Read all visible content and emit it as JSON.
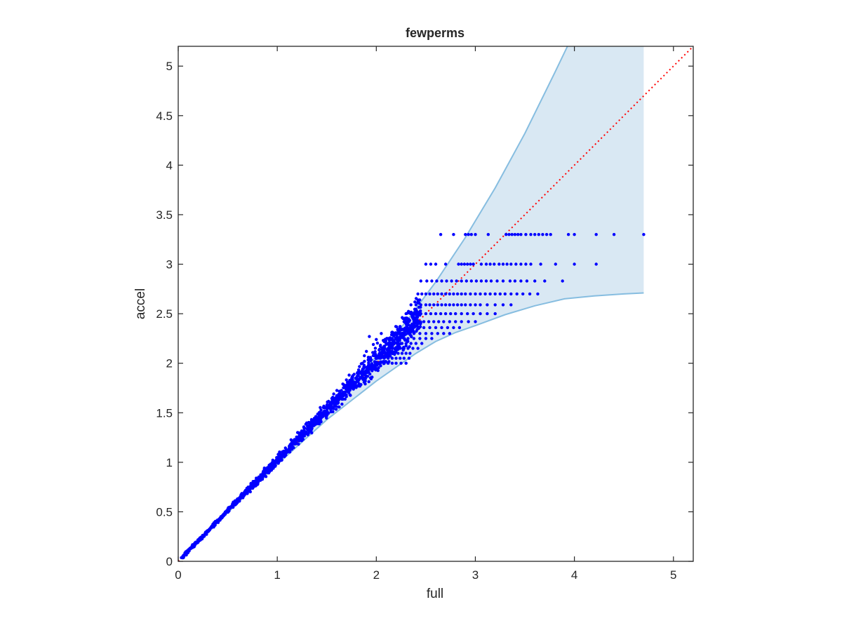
{
  "chart_data": {
    "type": "scatter",
    "title": "fewperms",
    "xlabel": "full",
    "ylabel": "accel",
    "xlim": [
      0,
      5.2
    ],
    "ylim": [
      0,
      5.2
    ],
    "xticks": [
      0,
      1,
      2,
      3,
      4,
      5
    ],
    "yticks": [
      0,
      0.5,
      1,
      1.5,
      2,
      2.5,
      3,
      3.5,
      4,
      4.5,
      5
    ],
    "x_tick_labels": [
      "0",
      "1",
      "2",
      "3",
      "4",
      "5"
    ],
    "y_tick_labels": [
      "0",
      "0.5",
      "1",
      "1.5",
      "2",
      "2.5",
      "3",
      "3.5",
      "4",
      "4.5",
      "5"
    ],
    "grid": false,
    "box": true,
    "colors": {
      "points": "#0000ff",
      "band_fill": "#d9e8f3",
      "band_edge": "#86bde0",
      "reference_line": "#ff0000",
      "axes": "#262626"
    },
    "reference_line": {
      "style": "dotted",
      "from": [
        0,
        0
      ],
      "to": [
        5.2,
        5.2
      ]
    },
    "band": {
      "upper": [
        [
          0.03,
          0.03
        ],
        [
          0.5,
          0.49
        ],
        [
          1.0,
          0.99
        ],
        [
          1.5,
          1.52
        ],
        [
          2.0,
          2.07
        ],
        [
          2.3,
          2.42
        ],
        [
          2.6,
          2.82
        ],
        [
          2.9,
          3.27
        ],
        [
          3.2,
          3.77
        ],
        [
          3.5,
          4.32
        ],
        [
          3.8,
          4.93
        ],
        [
          3.93,
          5.2
        ],
        [
          4.7,
          5.2
        ]
      ],
      "lower": [
        [
          4.7,
          2.71
        ],
        [
          4.5,
          2.7
        ],
        [
          4.2,
          2.68
        ],
        [
          3.9,
          2.65
        ],
        [
          3.6,
          2.58
        ],
        [
          3.3,
          2.49
        ],
        [
          3.0,
          2.38
        ],
        [
          2.8,
          2.31
        ],
        [
          2.6,
          2.22
        ],
        [
          2.4,
          2.1
        ],
        [
          2.2,
          1.96
        ],
        [
          2.0,
          1.82
        ],
        [
          1.5,
          1.43
        ],
        [
          1.0,
          0.98
        ],
        [
          0.5,
          0.5
        ],
        [
          0.03,
          0.03
        ]
      ]
    },
    "cloud": {
      "points": 1400,
      "x_range": [
        0.03,
        2.45
      ],
      "description": "dense scatter hugging the diagonal, widening with x"
    },
    "points": [
      [
        2.5,
        3.0
      ],
      [
        2.65,
        3.3
      ],
      [
        2.78,
        3.3
      ],
      [
        2.9,
        3.3
      ],
      [
        2.93,
        3.3
      ],
      [
        2.96,
        3.3
      ],
      [
        3.0,
        3.3
      ],
      [
        3.13,
        3.3
      ],
      [
        3.31,
        3.3
      ],
      [
        3.34,
        3.3
      ],
      [
        3.37,
        3.3
      ],
      [
        3.4,
        3.3
      ],
      [
        3.43,
        3.3
      ],
      [
        3.46,
        3.3
      ],
      [
        3.51,
        3.3
      ],
      [
        3.56,
        3.3
      ],
      [
        3.6,
        3.3
      ],
      [
        3.64,
        3.3
      ],
      [
        3.68,
        3.3
      ],
      [
        3.72,
        3.3
      ],
      [
        3.76,
        3.3
      ],
      [
        3.94,
        3.3
      ],
      [
        4.0,
        3.3
      ],
      [
        4.22,
        3.3
      ],
      [
        4.4,
        3.3
      ],
      [
        4.7,
        3.3
      ],
      [
        2.55,
        3.0
      ],
      [
        2.6,
        3.0
      ],
      [
        2.7,
        3.0
      ],
      [
        2.83,
        3.0
      ],
      [
        2.86,
        3.0
      ],
      [
        2.89,
        3.0
      ],
      [
        2.92,
        3.0
      ],
      [
        2.95,
        3.0
      ],
      [
        2.98,
        3.0
      ],
      [
        3.06,
        3.0
      ],
      [
        3.11,
        3.0
      ],
      [
        3.15,
        3.0
      ],
      [
        3.19,
        3.0
      ],
      [
        3.24,
        3.0
      ],
      [
        3.28,
        3.0
      ],
      [
        3.32,
        3.0
      ],
      [
        3.36,
        3.0
      ],
      [
        3.41,
        3.0
      ],
      [
        3.46,
        3.0
      ],
      [
        3.51,
        3.0
      ],
      [
        3.56,
        3.0
      ],
      [
        3.66,
        3.0
      ],
      [
        3.81,
        3.0
      ],
      [
        4.0,
        3.0
      ],
      [
        4.22,
        3.0
      ],
      [
        2.45,
        2.83
      ],
      [
        2.51,
        2.83
      ],
      [
        2.56,
        2.83
      ],
      [
        2.61,
        2.83
      ],
      [
        2.66,
        2.83
      ],
      [
        2.71,
        2.83
      ],
      [
        2.76,
        2.83
      ],
      [
        2.81,
        2.83
      ],
      [
        2.86,
        2.83
      ],
      [
        2.91,
        2.83
      ],
      [
        2.96,
        2.83
      ],
      [
        3.01,
        2.83
      ],
      [
        3.06,
        2.83
      ],
      [
        3.11,
        2.83
      ],
      [
        3.16,
        2.83
      ],
      [
        3.22,
        2.83
      ],
      [
        3.28,
        2.83
      ],
      [
        3.35,
        2.83
      ],
      [
        3.4,
        2.83
      ],
      [
        3.46,
        2.83
      ],
      [
        3.52,
        2.83
      ],
      [
        3.6,
        2.83
      ],
      [
        3.7,
        2.83
      ],
      [
        3.88,
        2.83
      ],
      [
        2.42,
        2.7
      ],
      [
        2.46,
        2.7
      ],
      [
        2.5,
        2.7
      ],
      [
        2.54,
        2.7
      ],
      [
        2.58,
        2.7
      ],
      [
        2.62,
        2.7
      ],
      [
        2.66,
        2.7
      ],
      [
        2.7,
        2.7
      ],
      [
        2.74,
        2.7
      ],
      [
        2.78,
        2.7
      ],
      [
        2.82,
        2.7
      ],
      [
        2.86,
        2.7
      ],
      [
        2.9,
        2.7
      ],
      [
        2.95,
        2.7
      ],
      [
        3.0,
        2.7
      ],
      [
        3.05,
        2.7
      ],
      [
        3.1,
        2.7
      ],
      [
        3.15,
        2.7
      ],
      [
        3.2,
        2.7
      ],
      [
        3.25,
        2.7
      ],
      [
        3.3,
        2.7
      ],
      [
        3.36,
        2.7
      ],
      [
        3.42,
        2.7
      ],
      [
        3.48,
        2.7
      ],
      [
        3.55,
        2.7
      ],
      [
        3.63,
        2.7
      ],
      [
        2.35,
        2.59
      ],
      [
        2.4,
        2.59
      ],
      [
        2.45,
        2.59
      ],
      [
        2.5,
        2.59
      ],
      [
        2.54,
        2.59
      ],
      [
        2.58,
        2.59
      ],
      [
        2.62,
        2.59
      ],
      [
        2.66,
        2.59
      ],
      [
        2.7,
        2.59
      ],
      [
        2.74,
        2.59
      ],
      [
        2.78,
        2.59
      ],
      [
        2.82,
        2.59
      ],
      [
        2.86,
        2.59
      ],
      [
        2.9,
        2.59
      ],
      [
        2.95,
        2.59
      ],
      [
        3.0,
        2.59
      ],
      [
        3.05,
        2.59
      ],
      [
        3.12,
        2.59
      ],
      [
        3.2,
        2.59
      ],
      [
        3.28,
        2.59
      ],
      [
        3.36,
        2.59
      ],
      [
        2.3,
        2.5
      ],
      [
        2.35,
        2.5
      ],
      [
        2.4,
        2.5
      ],
      [
        2.45,
        2.5
      ],
      [
        2.5,
        2.5
      ],
      [
        2.55,
        2.5
      ],
      [
        2.6,
        2.5
      ],
      [
        2.65,
        2.5
      ],
      [
        2.7,
        2.5
      ],
      [
        2.75,
        2.5
      ],
      [
        2.8,
        2.5
      ],
      [
        2.86,
        2.5
      ],
      [
        2.92,
        2.5
      ],
      [
        2.98,
        2.5
      ],
      [
        3.05,
        2.5
      ],
      [
        3.12,
        2.5
      ],
      [
        3.2,
        2.5
      ],
      [
        2.28,
        2.42
      ],
      [
        2.33,
        2.42
      ],
      [
        2.38,
        2.42
      ],
      [
        2.43,
        2.42
      ],
      [
        2.48,
        2.42
      ],
      [
        2.53,
        2.42
      ],
      [
        2.58,
        2.42
      ],
      [
        2.63,
        2.42
      ],
      [
        2.68,
        2.42
      ],
      [
        2.74,
        2.42
      ],
      [
        2.8,
        2.42
      ],
      [
        2.86,
        2.42
      ],
      [
        2.93,
        2.42
      ],
      [
        3.0,
        2.42
      ],
      [
        2.24,
        2.36
      ],
      [
        2.3,
        2.36
      ],
      [
        2.36,
        2.36
      ],
      [
        2.42,
        2.36
      ],
      [
        2.48,
        2.36
      ],
      [
        2.54,
        2.36
      ],
      [
        2.6,
        2.36
      ],
      [
        2.66,
        2.36
      ],
      [
        2.72,
        2.36
      ],
      [
        2.78,
        2.36
      ],
      [
        2.84,
        2.36
      ],
      [
        2.2,
        2.3
      ],
      [
        2.26,
        2.3
      ],
      [
        2.32,
        2.3
      ],
      [
        2.38,
        2.3
      ],
      [
        2.44,
        2.3
      ],
      [
        2.5,
        2.3
      ],
      [
        2.56,
        2.3
      ],
      [
        2.62,
        2.3
      ],
      [
        2.68,
        2.3
      ],
      [
        2.74,
        2.3
      ],
      [
        2.12,
        2.25
      ],
      [
        2.16,
        2.25
      ],
      [
        2.2,
        2.25
      ],
      [
        2.24,
        2.25
      ],
      [
        2.28,
        2.25
      ],
      [
        2.32,
        2.25
      ],
      [
        2.38,
        2.25
      ],
      [
        2.44,
        2.25
      ],
      [
        2.5,
        2.25
      ],
      [
        2.56,
        2.25
      ],
      [
        2.1,
        2.2
      ],
      [
        2.14,
        2.2
      ],
      [
        2.18,
        2.2
      ],
      [
        2.22,
        2.2
      ],
      [
        2.26,
        2.2
      ],
      [
        2.3,
        2.2
      ],
      [
        2.35,
        2.2
      ],
      [
        2.4,
        2.2
      ],
      [
        2.46,
        2.2
      ],
      [
        2.08,
        2.15
      ],
      [
        2.12,
        2.15
      ],
      [
        2.16,
        2.15
      ],
      [
        2.2,
        2.15
      ],
      [
        2.24,
        2.15
      ],
      [
        2.28,
        2.15
      ],
      [
        2.32,
        2.15
      ],
      [
        2.37,
        2.15
      ],
      [
        2.42,
        2.15
      ],
      [
        2.06,
        2.1
      ],
      [
        2.1,
        2.1
      ],
      [
        2.14,
        2.1
      ],
      [
        2.18,
        2.1
      ],
      [
        2.22,
        2.1
      ],
      [
        2.26,
        2.1
      ],
      [
        2.3,
        2.1
      ],
      [
        2.34,
        2.1
      ],
      [
        2.04,
        2.05
      ],
      [
        2.08,
        2.05
      ],
      [
        2.12,
        2.05
      ],
      [
        2.16,
        2.05
      ],
      [
        2.2,
        2.05
      ],
      [
        2.24,
        2.05
      ],
      [
        2.28,
        2.05
      ],
      [
        2.33,
        2.05
      ],
      [
        2.0,
        2.0
      ],
      [
        2.04,
        2.0
      ],
      [
        2.08,
        2.0
      ],
      [
        2.12,
        2.0
      ],
      [
        2.16,
        2.0
      ],
      [
        2.2,
        2.0
      ],
      [
        2.25,
        2.0
      ],
      [
        2.3,
        2.0
      ],
      [
        1.93,
        2.27
      ],
      [
        1.97,
        2.19
      ],
      [
        1.9,
        2.12
      ],
      [
        2.0,
        2.24
      ],
      [
        2.05,
        2.3
      ],
      [
        1.92,
        2.06
      ],
      [
        1.88,
        2.02
      ],
      [
        1.86,
        2.0
      ]
    ]
  }
}
